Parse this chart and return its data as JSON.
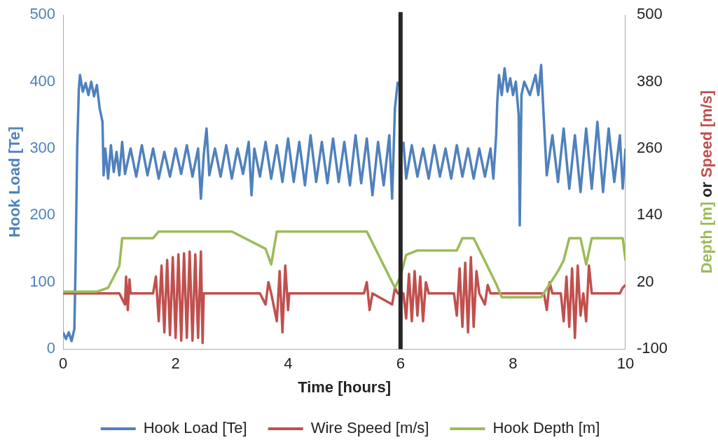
{
  "chart_data": {
    "type": "line",
    "xlabel": "Time [hours]",
    "ylabel": "Hook Load [Te]",
    "y2label": "Depth [m] or Speed [m/s]",
    "xlim": [
      0,
      10
    ],
    "xticks": [
      0,
      2,
      4,
      6,
      8,
      10
    ],
    "ylim": [
      0,
      500
    ],
    "yticks": [
      0,
      100,
      200,
      300,
      400,
      500
    ],
    "y2lim": [
      -100,
      500
    ],
    "y2ticks": [
      -100,
      20,
      140,
      260,
      380,
      500
    ],
    "grid": false,
    "legend": "bottom",
    "marker": "none",
    "line_style": "solid",
    "ref_lines": [
      {
        "axis": "x",
        "value": 6,
        "color": "#262626"
      }
    ],
    "series": [
      {
        "name": "Hook Load [Te]",
        "color": "#4f81bd",
        "x": [
          0,
          0.05,
          0.1,
          0.15,
          0.2,
          0.22,
          0.25,
          0.28,
          0.3,
          0.35,
          0.4,
          0.45,
          0.5,
          0.55,
          0.6,
          0.65,
          0.7,
          0.72,
          0.75,
          0.8,
          0.85,
          0.9,
          0.95,
          1.0,
          1.05,
          1.1,
          1.2,
          1.3,
          1.4,
          1.5,
          1.6,
          1.7,
          1.8,
          1.9,
          2.0,
          2.1,
          2.2,
          2.3,
          2.4,
          2.45,
          2.5,
          2.55,
          2.6,
          2.7,
          2.8,
          2.9,
          3.0,
          3.1,
          3.2,
          3.3,
          3.35,
          3.4,
          3.5,
          3.6,
          3.7,
          3.8,
          3.9,
          4.0,
          4.1,
          4.2,
          4.3,
          4.4,
          4.5,
          4.6,
          4.7,
          4.8,
          4.9,
          5.0,
          5.1,
          5.2,
          5.3,
          5.4,
          5.5,
          5.6,
          5.7,
          5.8,
          5.85,
          5.9,
          5.95,
          6.0,
          6.05,
          6.1,
          6.2,
          6.3,
          6.4,
          6.5,
          6.6,
          6.7,
          6.8,
          6.9,
          7.0,
          7.1,
          7.2,
          7.3,
          7.4,
          7.5,
          7.6,
          7.65,
          7.7,
          7.72,
          7.75,
          7.8,
          7.85,
          7.9,
          7.95,
          8.0,
          8.05,
          8.1,
          8.12,
          8.15,
          8.2,
          8.3,
          8.4,
          8.45,
          8.5,
          8.55,
          8.6,
          8.7,
          8.8,
          8.9,
          9.0,
          9.1,
          9.2,
          9.3,
          9.4,
          9.5,
          9.6,
          9.7,
          9.8,
          9.9,
          9.95,
          10
        ],
        "values": [
          25,
          15,
          25,
          12,
          30,
          120,
          300,
          390,
          410,
          385,
          398,
          380,
          400,
          378,
          395,
          360,
          340,
          260,
          300,
          255,
          305,
          265,
          295,
          260,
          310,
          262,
          300,
          258,
          305,
          260,
          300,
          255,
          295,
          258,
          300,
          262,
          305,
          258,
          300,
          225,
          290,
          330,
          260,
          300,
          258,
          305,
          255,
          300,
          262,
          310,
          230,
          300,
          258,
          310,
          255,
          305,
          250,
          315,
          250,
          310,
          245,
          320,
          250,
          310,
          248,
          315,
          250,
          310,
          245,
          320,
          248,
          315,
          230,
          310,
          245,
          320,
          225,
          360,
          400,
          null,
          310,
          255,
          305,
          258,
          300,
          255,
          305,
          258,
          300,
          255,
          305,
          258,
          300,
          255,
          300,
          258,
          300,
          255,
          320,
          370,
          410,
          380,
          420,
          385,
          405,
          380,
          400,
          350,
          185,
          380,
          400,
          380,
          410,
          380,
          425,
          340,
          260,
          320,
          250,
          330,
          240,
          320,
          235,
          330,
          240,
          340,
          235,
          330,
          250,
          320,
          240,
          300
        ]
      },
      {
        "name": "Wire Speed [m/s]",
        "color": "#c0504d",
        "axis": "y2",
        "x": [
          0,
          1.0,
          1.1,
          1.12,
          1.15,
          1.18,
          1.2,
          1.6,
          1.65,
          1.7,
          1.75,
          1.8,
          1.85,
          1.9,
          1.95,
          2.0,
          2.05,
          2.1,
          2.15,
          2.2,
          2.25,
          2.3,
          2.35,
          2.4,
          2.45,
          2.48,
          2.5,
          3.5,
          3.6,
          3.65,
          3.7,
          3.8,
          3.85,
          3.9,
          3.95,
          4.0,
          4.02,
          5.35,
          5.4,
          5.45,
          5.5,
          5.85,
          5.9,
          5.95,
          6.05,
          6.1,
          6.15,
          6.2,
          6.25,
          6.3,
          6.35,
          6.4,
          6.45,
          6.5,
          6.95,
          7.0,
          7.05,
          7.1,
          7.15,
          7.2,
          7.25,
          7.3,
          7.35,
          7.4,
          7.5,
          7.55,
          7.6,
          8.55,
          8.6,
          8.65,
          8.7,
          8.85,
          8.9,
          8.95,
          9.0,
          9.05,
          9.1,
          9.15,
          9.2,
          9.25,
          9.3,
          9.35,
          9.4,
          9.9,
          9.95,
          10
        ],
        "values": [
          0,
          0,
          -20,
          30,
          -30,
          25,
          0,
          0,
          30,
          -50,
          50,
          -70,
          60,
          -75,
          65,
          -80,
          70,
          -85,
          72,
          -80,
          75,
          -85,
          70,
          -80,
          75,
          -89,
          0,
          0,
          -20,
          20,
          0,
          -50,
          40,
          -70,
          50,
          -30,
          0,
          0,
          20,
          -30,
          0,
          -20,
          10,
          0,
          0,
          -45,
          35,
          -50,
          40,
          -40,
          30,
          -50,
          20,
          0,
          0,
          -40,
          45,
          -60,
          55,
          -70,
          65,
          -60,
          40,
          0,
          -20,
          15,
          0,
          0,
          -30,
          20,
          0,
          0,
          -50,
          30,
          -60,
          45,
          -80,
          50,
          -40,
          0,
          -50,
          50,
          0,
          0,
          10,
          15
        ]
      },
      {
        "name": "Hook Depth [m]",
        "color": "#9bbb59",
        "axis": "y2",
        "x": [
          0,
          0.6,
          0.8,
          1.0,
          1.05,
          1.5,
          1.6,
          1.7,
          3.0,
          3.6,
          3.7,
          3.8,
          5.4,
          5.9,
          6.0,
          6.1,
          6.3,
          7.0,
          7.1,
          7.3,
          7.7,
          7.8,
          8.5,
          8.8,
          8.9,
          9.0,
          9.2,
          9.3,
          9.4,
          9.95,
          10
        ],
        "values": [
          3,
          3,
          10,
          49,
          99,
          99,
          99,
          111,
          111,
          80,
          52,
          111,
          111,
          10,
          31,
          69,
          77,
          77,
          99,
          99,
          17,
          -7,
          -7,
          40,
          59,
          99,
          99,
          52,
          99,
          99,
          59
        ]
      }
    ]
  }
}
